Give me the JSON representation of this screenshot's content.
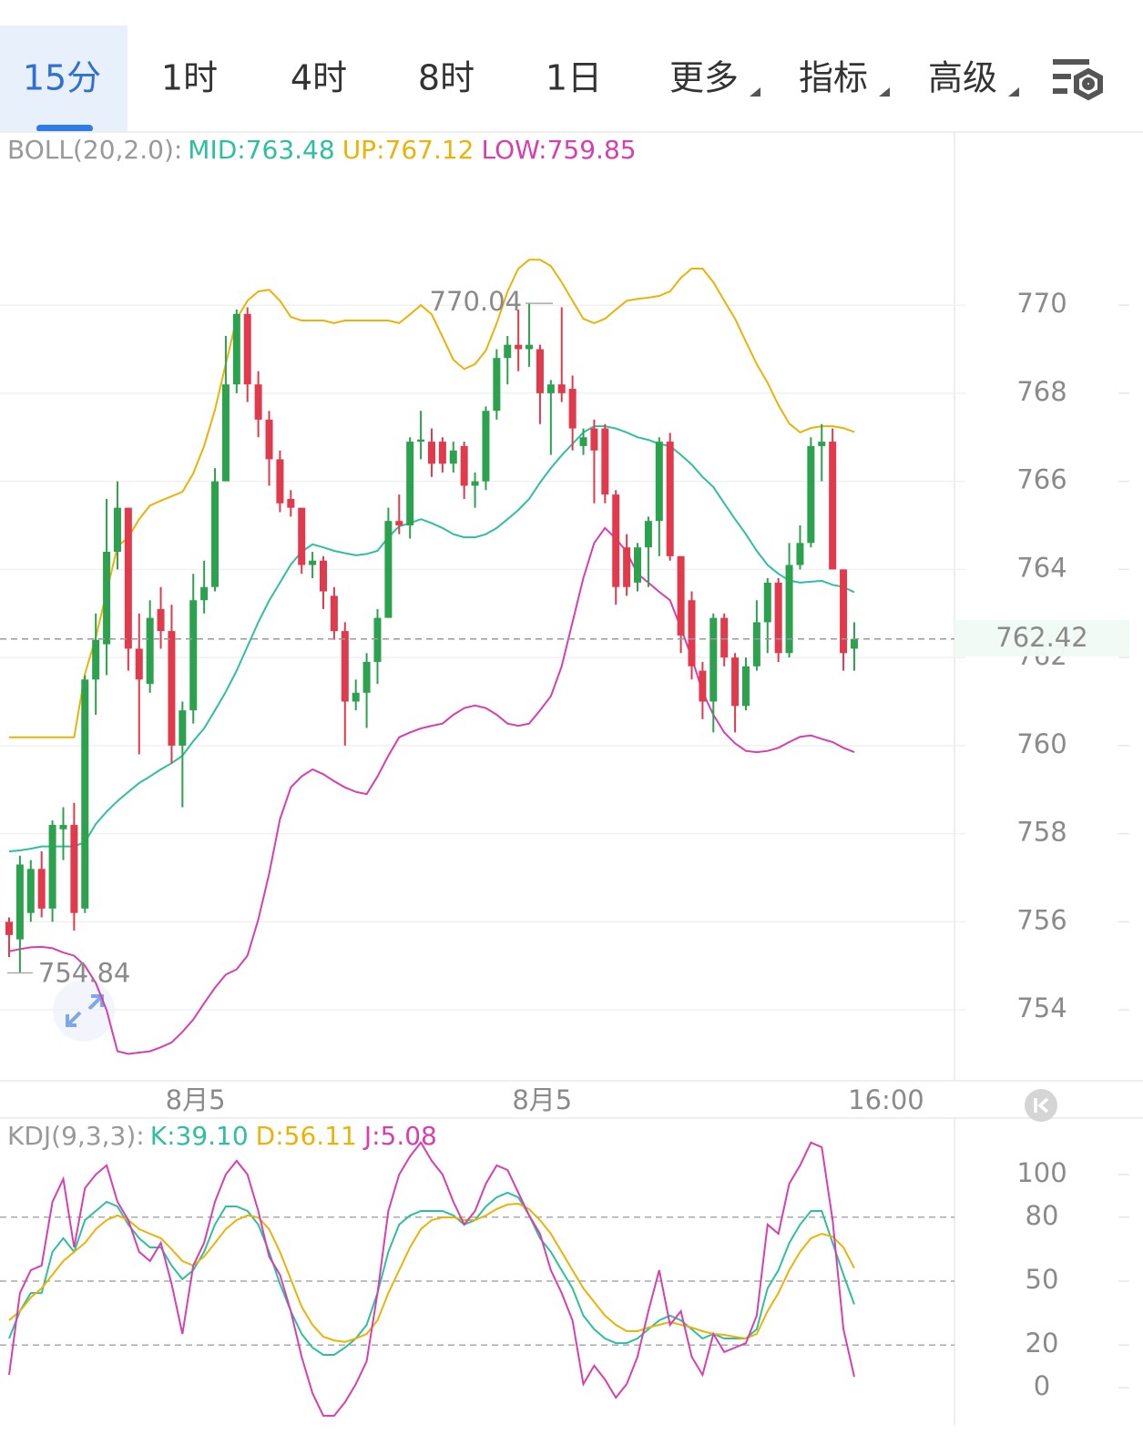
{
  "tabs": [
    "15分",
    "1时",
    "4时",
    "8时",
    "1日",
    "更多",
    "指标",
    "高级"
  ],
  "chart_data": [
    {
      "type": "candlestick",
      "legend_title": "BOLL(20,2.0):",
      "up_color": "#2ca24e",
      "down_color": "#e03a4c",
      "open": [
        756.0,
        755.6,
        756.2,
        757.2,
        756.3,
        758.1,
        758.2,
        756.3,
        761.5,
        762.3,
        764.4,
        765.4,
        762.2,
        761.4,
        763.1,
        762.6,
        760.0,
        760.8,
        763.3,
        763.6,
        766.0,
        768.2,
        769.8,
        768.2,
        767.4,
        766.5,
        765.6,
        765.4,
        764.1,
        764.2,
        763.4,
        762.6,
        761.0,
        761.2,
        761.9,
        762.9,
        765.1,
        765.0,
        766.9,
        766.9,
        766.9,
        766.4,
        766.8,
        765.9,
        766.0,
        767.6,
        768.8,
        769.1,
        769.0,
        769.0,
        768.0,
        768.2,
        768.1,
        766.8,
        767.2,
        767.2,
        765.7,
        764.5,
        763.7,
        764.5,
        765.1,
        766.9,
        764.3,
        763.3,
        761.7,
        761.0,
        762.9,
        762.0,
        760.9,
        761.8,
        762.8,
        763.7,
        762.1,
        764.1,
        764.6,
        766.8,
        766.9,
        764.0,
        762.2
      ],
      "high": [
        756.1,
        757.5,
        757.4,
        757.6,
        758.3,
        758.6,
        758.7,
        761.6,
        763.0,
        765.6,
        766.0,
        765.4,
        763.0,
        763.3,
        763.6,
        763.2,
        761.0,
        763.9,
        764.2,
        766.3,
        769.3,
        769.9,
        769.95,
        768.5,
        767.6,
        766.7,
        765.8,
        765.4,
        764.4,
        764.3,
        763.6,
        762.8,
        761.5,
        762.1,
        763.1,
        765.4,
        765.7,
        767.0,
        767.6,
        767.2,
        767.0,
        766.9,
        766.9,
        766.2,
        767.7,
        769.0,
        769.3,
        769.9,
        770.04,
        769.1,
        768.3,
        769.95,
        768.4,
        767.2,
        767.4,
        767.3,
        765.8,
        764.8,
        764.6,
        765.2,
        767.0,
        767.1,
        764.3,
        763.5,
        761.9,
        763.0,
        763.0,
        762.1,
        762.0,
        763.3,
        763.8,
        763.8,
        764.6,
        765.0,
        767.0,
        767.3,
        767.2,
        764.0,
        762.8
      ],
      "low": [
        755.2,
        754.84,
        756.0,
        756.1,
        756.0,
        757.4,
        755.8,
        756.2,
        760.7,
        761.6,
        764.0,
        761.7,
        759.8,
        761.2,
        762.2,
        759.6,
        758.6,
        760.5,
        763.0,
        763.5,
        766.0,
        768.0,
        767.8,
        767.0,
        765.9,
        765.3,
        765.2,
        763.9,
        763.8,
        763.1,
        762.4,
        760.0,
        760.8,
        760.4,
        761.4,
        762.9,
        764.8,
        764.7,
        766.5,
        766.1,
        766.2,
        766.2,
        765.6,
        765.4,
        765.8,
        767.4,
        768.2,
        768.5,
        768.6,
        767.3,
        766.6,
        767.8,
        766.7,
        766.6,
        765.5,
        765.5,
        763.2,
        763.4,
        763.5,
        763.6,
        764.3,
        764.2,
        762.1,
        761.5,
        760.6,
        760.3,
        761.8,
        760.3,
        760.8,
        761.7,
        762.1,
        761.9,
        762.0,
        764.0,
        764.5,
        766.0,
        764.0,
        761.7,
        761.7
      ],
      "close": [
        755.7,
        757.3,
        757.2,
        756.3,
        758.2,
        758.2,
        756.2,
        761.5,
        762.4,
        764.4,
        765.4,
        762.2,
        761.5,
        762.9,
        762.6,
        760.0,
        760.8,
        763.3,
        763.6,
        766.0,
        768.2,
        769.8,
        768.2,
        767.4,
        766.5,
        765.5,
        765.4,
        764.1,
        764.2,
        763.5,
        762.6,
        761.0,
        761.2,
        761.9,
        762.9,
        765.1,
        765.0,
        766.9,
        766.95,
        766.4,
        766.4,
        766.7,
        765.9,
        766.0,
        767.6,
        768.8,
        769.1,
        769.0,
        769.1,
        768.0,
        768.2,
        768.0,
        767.2,
        767.0,
        766.7,
        765.7,
        763.6,
        763.6,
        764.5,
        765.1,
        766.9,
        764.3,
        762.5,
        761.8,
        761.0,
        762.9,
        762.0,
        760.9,
        761.8,
        762.8,
        763.7,
        762.1,
        764.1,
        764.6,
        766.8,
        766.9,
        764.0,
        762.1,
        762.42
      ],
      "series": [
        {
          "legend_text": "MID:763.48",
          "color": "#2fbf9f",
          "values": [
            757.6,
            757.62,
            757.66,
            757.71,
            757.71,
            757.71,
            757.71,
            757.81,
            758.22,
            758.5,
            758.74,
            758.95,
            759.15,
            759.3,
            759.46,
            759.6,
            759.77,
            760.1,
            760.39,
            760.8,
            761.22,
            761.7,
            762.25,
            762.8,
            763.29,
            763.7,
            764.11,
            764.4,
            764.57,
            764.5,
            764.42,
            764.37,
            764.32,
            764.35,
            764.42,
            764.73,
            764.98,
            765.05,
            765.14,
            765.05,
            764.94,
            764.8,
            764.73,
            764.73,
            764.8,
            764.94,
            765.14,
            765.35,
            765.6,
            765.97,
            766.3,
            766.59,
            766.85,
            767.11,
            767.25,
            767.25,
            767.2,
            767.11,
            767.0,
            766.94,
            766.85,
            766.8,
            766.6,
            766.38,
            766.1,
            765.87,
            765.5,
            765.14,
            764.8,
            764.42,
            764.1,
            763.9,
            763.75,
            763.7,
            763.72,
            763.74,
            763.65,
            763.6,
            763.48
          ]
        },
        {
          "legend_text": "UP:767.12",
          "color": "#eab308",
          "values": [
            760.19,
            760.19,
            760.19,
            760.19,
            760.19,
            760.19,
            760.19,
            761.63,
            762.46,
            763.49,
            764.52,
            764.73,
            765.14,
            765.45,
            765.56,
            765.66,
            765.76,
            766.18,
            766.8,
            767.62,
            768.66,
            769.69,
            770.1,
            770.31,
            770.35,
            770.1,
            769.73,
            769.65,
            769.65,
            769.65,
            769.59,
            769.65,
            769.65,
            769.65,
            769.65,
            769.65,
            769.59,
            769.79,
            770.0,
            769.79,
            769.28,
            768.76,
            768.55,
            768.66,
            768.97,
            769.59,
            770.31,
            770.83,
            771.03,
            771.03,
            770.89,
            770.52,
            770.1,
            769.69,
            769.59,
            769.69,
            769.9,
            770.1,
            770.14,
            770.17,
            770.21,
            770.31,
            770.62,
            770.83,
            770.83,
            770.52,
            770.1,
            769.69,
            769.17,
            768.66,
            768.24,
            767.73,
            767.31,
            767.11,
            767.21,
            767.25,
            767.25,
            767.21,
            767.12
          ]
        },
        {
          "legend_text": "LOW:759.85",
          "color": "#d63fb0",
          "values": [
            755.33,
            755.38,
            755.42,
            755.43,
            755.4,
            755.3,
            755.23,
            755.0,
            754.61,
            753.99,
            753.06,
            753.0,
            753.03,
            753.06,
            753.15,
            753.26,
            753.5,
            753.78,
            754.15,
            754.5,
            754.8,
            754.92,
            755.23,
            756.05,
            757.09,
            758.33,
            759.05,
            759.3,
            759.46,
            759.35,
            759.19,
            759.05,
            758.95,
            758.9,
            759.3,
            759.77,
            760.19,
            760.3,
            760.39,
            760.45,
            760.5,
            760.7,
            760.85,
            760.91,
            760.85,
            760.7,
            760.5,
            760.45,
            760.5,
            760.8,
            761.12,
            761.8,
            762.8,
            763.8,
            764.6,
            764.94,
            764.7,
            764.4,
            763.9,
            763.7,
            763.49,
            763.3,
            762.67,
            762.0,
            761.22,
            760.7,
            760.3,
            760.05,
            759.88,
            759.85,
            759.88,
            759.95,
            760.08,
            760.2,
            760.23,
            760.15,
            760.08,
            759.95,
            759.85
          ]
        }
      ],
      "ylim": [
        752.39,
        773.93
      ],
      "yticks": [
        754,
        756,
        758,
        760,
        762,
        764,
        766,
        768,
        770
      ],
      "xlim": [
        -0.84,
        87.25
      ],
      "xticks": [
        {
          "value": 17.2,
          "label": "8月5"
        },
        {
          "value": 49.2,
          "label": "8月5"
        },
        {
          "value": 80.94,
          "label": "16:00"
        }
      ],
      "last_price": 762.42,
      "high_marker": 770.04,
      "low_marker": 754.84
    },
    {
      "type": "line",
      "legend_title": "KDJ(9,3,3):",
      "series": [
        {
          "legend_text": "K:39.10",
          "color": "#2fbf9f",
          "values": [
            23.1,
            35.9,
            44.4,
            44.4,
            63.7,
            70.1,
            63.7,
            78.6,
            82.9,
            87.2,
            85.0,
            76.5,
            70.1,
            65.8,
            65.8,
            57.3,
            50.9,
            55.1,
            63.7,
            76.5,
            85.0,
            85.0,
            82.9,
            76.5,
            63.7,
            48.7,
            35.9,
            25.2,
            18.8,
            15.4,
            15.4,
            18.8,
            23.1,
            29.5,
            44.4,
            63.7,
            76.5,
            80.8,
            82.9,
            82.9,
            82.9,
            80.8,
            76.5,
            78.6,
            85.0,
            89.3,
            91.5,
            89.3,
            80.8,
            70.1,
            63.7,
            55.1,
            46.6,
            33.8,
            27.4,
            23.1,
            20.9,
            20.9,
            23.1,
            27.4,
            31.6,
            33.8,
            31.6,
            27.4,
            23.1,
            25.2,
            23.1,
            23.1,
            23.1,
            27.4,
            46.6,
            55.1,
            67.9,
            76.5,
            82.9,
            82.9,
            67.9,
            53.0,
            39.1
          ]
        },
        {
          "legend_text": "D:56.11",
          "color": "#eab308",
          "values": [
            31.6,
            35.9,
            42.3,
            46.6,
            53.0,
            59.4,
            63.7,
            67.9,
            74.4,
            78.6,
            80.8,
            78.6,
            74.4,
            72.2,
            70.1,
            65.0,
            59.4,
            57.3,
            61.5,
            67.9,
            74.4,
            78.6,
            80.8,
            79.9,
            74.4,
            63.7,
            50.9,
            38.0,
            29.5,
            23.9,
            22.2,
            21.4,
            23.1,
            25.2,
            31.6,
            44.4,
            55.1,
            65.8,
            74.4,
            78.6,
            79.9,
            79.9,
            78.6,
            78.6,
            80.8,
            83.8,
            85.9,
            86.3,
            83.8,
            78.6,
            72.2,
            63.7,
            55.1,
            46.6,
            40.2,
            33.8,
            29.5,
            26.5,
            26.5,
            28.2,
            29.5,
            30.8,
            29.5,
            28.2,
            26.5,
            25.2,
            24.8,
            23.9,
            23.1,
            25.2,
            35.9,
            44.4,
            55.1,
            63.7,
            70.1,
            72.2,
            70.9,
            65.8,
            56.11
          ]
        },
        {
          "legend_text": "J:5.08",
          "color": "#d63fb0",
          "values": [
            6.0,
            44.4,
            55.1,
            57.3,
            87.2,
            97.9,
            65.8,
            93.6,
            100,
            104.3,
            87.2,
            78.6,
            63.7,
            59.4,
            67.9,
            48.7,
            25.2,
            57.3,
            67.9,
            87.2,
            100,
            106.4,
            100,
            82.9,
            61.5,
            53.0,
            35.9,
            14.5,
            -2.6,
            -13.2,
            -13.2,
            -6.8,
            1.7,
            12.4,
            44.4,
            82.9,
            100,
            108.5,
            115.0,
            106.4,
            100,
            87.2,
            76.5,
            82.9,
            95.7,
            104.3,
            102.1,
            91.5,
            80.8,
            72.2,
            55.1,
            44.4,
            31.6,
            1.7,
            10.3,
            3.8,
            -4.7,
            1.7,
            14.5,
            35.9,
            55.1,
            29.5,
            35.9,
            14.5,
            6.0,
            25.2,
            16.7,
            18.8,
            20.9,
            33.8,
            76.5,
            72.2,
            95.7,
            104.3,
            115.0,
            112.8,
            78.6,
            27.4,
            5.08
          ]
        }
      ],
      "ylim": [
        -17.5,
        125.6
      ],
      "yticks": [
        0,
        20,
        50,
        80,
        100
      ],
      "xlim": [
        -0.84,
        87.25
      ]
    }
  ]
}
